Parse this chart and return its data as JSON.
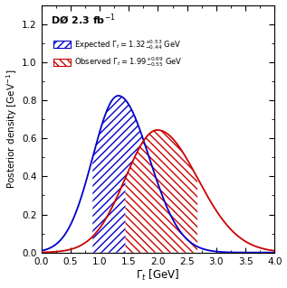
{
  "title": "DØ 2.3 fb$^{-1}$",
  "xlabel": "$\\Gamma_t$ [GeV]",
  "ylabel": "Posterior density [GeV$^{-1}$]",
  "xlim": [
    0,
    4
  ],
  "ylim": [
    0,
    1.3
  ],
  "xticks": [
    0,
    0.5,
    1.0,
    1.5,
    2.0,
    2.5,
    3.0,
    3.5,
    4.0
  ],
  "yticks": [
    0,
    0.2,
    0.4,
    0.6,
    0.8,
    1.0,
    1.2
  ],
  "expected_mode": 1.32,
  "expected_plus": 0.53,
  "expected_minus": 0.44,
  "observed_mode": 1.99,
  "observed_plus": 0.69,
  "observed_minus": 0.55,
  "blue_color": "#0000cc",
  "red_color": "#cc0000",
  "legend_expected": "Expected $\\Gamma_t = 1.32^{+0.53}_{-0.44}$ GeV",
  "legend_observed": "Observed $\\Gamma_t = 1.99^{+0.69}_{-0.55}$ GeV",
  "figsize": [
    3.17,
    3.19
  ],
  "dpi": 100
}
